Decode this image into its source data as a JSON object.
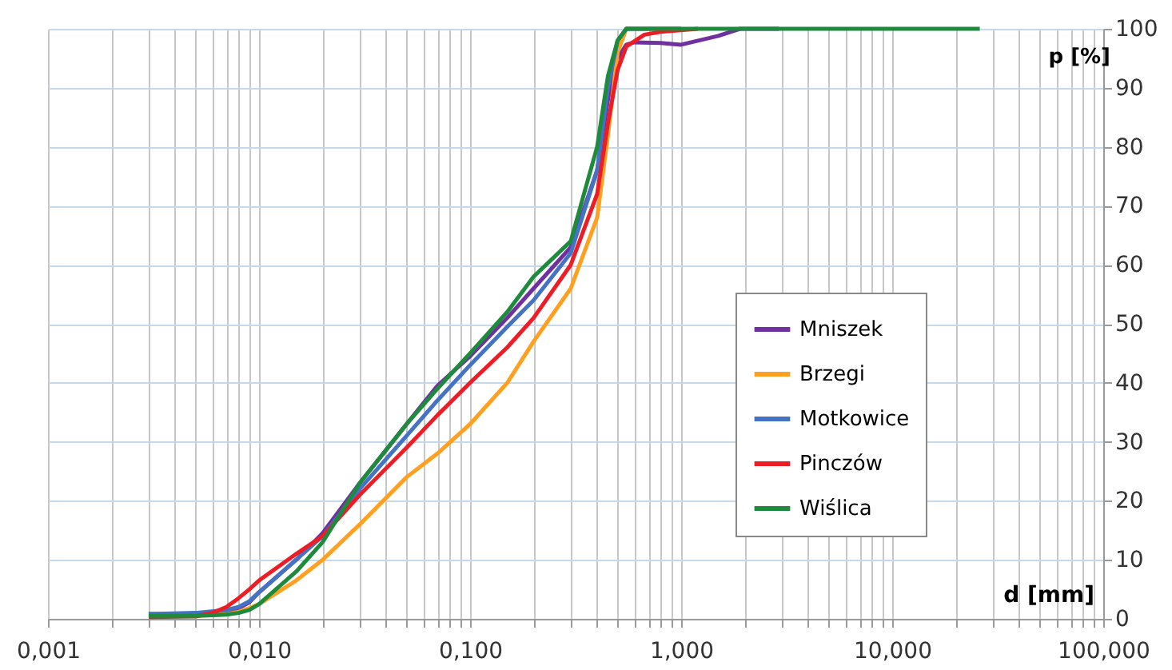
{
  "chart_data": {
    "type": "line",
    "xlabel": "d [mm]",
    "ylabel": "p [%]",
    "log": "x",
    "xlim": [
      0.001,
      100
    ],
    "ylim": [
      0,
      100
    ],
    "xticks": [
      {
        "value": 0.001,
        "label": "0,001"
      },
      {
        "value": 0.002,
        "label": null
      },
      {
        "value": 0.003,
        "label": null
      },
      {
        "value": 0.004,
        "label": null
      },
      {
        "value": 0.005,
        "label": null
      },
      {
        "value": 0.006,
        "label": null
      },
      {
        "value": 0.007,
        "label": null
      },
      {
        "value": 0.008,
        "label": null
      },
      {
        "value": 0.009,
        "label": null
      },
      {
        "value": 0.01,
        "label": "0,010"
      },
      {
        "value": 0.02,
        "label": null
      },
      {
        "value": 0.03,
        "label": null
      },
      {
        "value": 0.04,
        "label": null
      },
      {
        "value": 0.05,
        "label": null
      },
      {
        "value": 0.06,
        "label": null
      },
      {
        "value": 0.07,
        "label": null
      },
      {
        "value": 0.08,
        "label": null
      },
      {
        "value": 0.09,
        "label": null
      },
      {
        "value": 0.1,
        "label": "0,100"
      },
      {
        "value": 0.2,
        "label": null
      },
      {
        "value": 0.3,
        "label": null
      },
      {
        "value": 0.4,
        "label": null
      },
      {
        "value": 0.5,
        "label": null
      },
      {
        "value": 0.6,
        "label": null
      },
      {
        "value": 0.7,
        "label": null
      },
      {
        "value": 0.8,
        "label": null
      },
      {
        "value": 0.9,
        "label": null
      },
      {
        "value": 1,
        "label": "1,000"
      },
      {
        "value": 2,
        "label": null
      },
      {
        "value": 3,
        "label": null
      },
      {
        "value": 4,
        "label": null
      },
      {
        "value": 5,
        "label": null
      },
      {
        "value": 6,
        "label": null
      },
      {
        "value": 7,
        "label": null
      },
      {
        "value": 8,
        "label": null
      },
      {
        "value": 9,
        "label": null
      },
      {
        "value": 10,
        "label": "10,000"
      },
      {
        "value": 20,
        "label": null
      },
      {
        "value": 30,
        "label": null
      },
      {
        "value": 40,
        "label": null
      },
      {
        "value": 50,
        "label": null
      },
      {
        "value": 60,
        "label": null
      },
      {
        "value": 70,
        "label": null
      },
      {
        "value": 80,
        "label": null
      },
      {
        "value": 90,
        "label": null
      },
      {
        "value": 100,
        "label": "100,000"
      }
    ],
    "yticks": [
      0,
      10,
      20,
      30,
      40,
      50,
      60,
      70,
      80,
      90,
      100
    ],
    "grid": true,
    "legend": "right",
    "marker": "none",
    "line_style": "solid",
    "series": [
      {
        "name": "Mniszek",
        "color": "#7030a0",
        "x": [
          0.003,
          0.005,
          0.007,
          0.008,
          0.009,
          0.01,
          0.015,
          0.02,
          0.03,
          0.05,
          0.07,
          0.1,
          0.15,
          0.2,
          0.3,
          0.4,
          0.45,
          0.5,
          0.55,
          0.6,
          0.8,
          1,
          1.5,
          1.9,
          2.9
        ],
        "values": [
          0.8,
          0.8,
          1.2,
          1.8,
          2.8,
          4.5,
          10,
          14.5,
          23,
          33,
          39.5,
          44.5,
          51,
          56,
          63,
          76,
          88,
          95,
          97.3,
          97.7,
          97.6,
          97.3,
          98.8,
          100,
          100
        ]
      },
      {
        "name": "Brzegi",
        "color": "#ffa020",
        "x": [
          0.003,
          0.005,
          0.007,
          0.008,
          0.009,
          0.01,
          0.015,
          0.02,
          0.03,
          0.05,
          0.07,
          0.1,
          0.15,
          0.2,
          0.3,
          0.4,
          0.45,
          0.5,
          0.55,
          0.7,
          1
        ],
        "values": [
          0.5,
          0.5,
          0.8,
          1.2,
          1.8,
          2.5,
          6.5,
          10,
          16,
          24,
          28,
          33,
          40,
          47,
          56,
          68,
          82,
          96,
          100,
          100,
          100
        ]
      },
      {
        "name": "Motkowice",
        "color": "#4472c4",
        "x": [
          0.003,
          0.005,
          0.007,
          0.008,
          0.009,
          0.01,
          0.015,
          0.02,
          0.03,
          0.05,
          0.07,
          0.1,
          0.15,
          0.2,
          0.3,
          0.4,
          0.45,
          0.5,
          0.55,
          0.7,
          1
        ],
        "values": [
          0.8,
          1,
          1.5,
          2,
          3,
          4.5,
          10,
          14,
          22,
          31,
          37,
          43,
          49.5,
          54,
          62,
          76,
          90,
          98,
          100,
          100,
          100
        ]
      },
      {
        "name": "Pinczów",
        "color": "#ee1c25",
        "x": [
          0.003,
          0.005,
          0.006,
          0.007,
          0.008,
          0.009,
          0.01,
          0.015,
          0.02,
          0.03,
          0.05,
          0.07,
          0.1,
          0.15,
          0.2,
          0.3,
          0.4,
          0.45,
          0.5,
          0.55,
          0.67,
          0.8,
          1.2
        ],
        "values": [
          0.3,
          0.4,
          1,
          2,
          3.5,
          5,
          6.5,
          11,
          14,
          21,
          29,
          34.5,
          40,
          46,
          51,
          60,
          72,
          84,
          93,
          97,
          99,
          99.5,
          100
        ]
      },
      {
        "name": "Wiślica",
        "color": "#1e8a3c",
        "x": [
          0.003,
          0.005,
          0.007,
          0.008,
          0.009,
          0.01,
          0.015,
          0.02,
          0.03,
          0.05,
          0.07,
          0.1,
          0.15,
          0.2,
          0.3,
          0.4,
          0.45,
          0.5,
          0.55,
          0.7,
          1,
          26
        ],
        "values": [
          0.5,
          0.5,
          0.7,
          1,
          1.5,
          2.5,
          8,
          13,
          23,
          33,
          39,
          45,
          52,
          58,
          64,
          80,
          92,
          98,
          100,
          100,
          100,
          100
        ]
      }
    ]
  }
}
